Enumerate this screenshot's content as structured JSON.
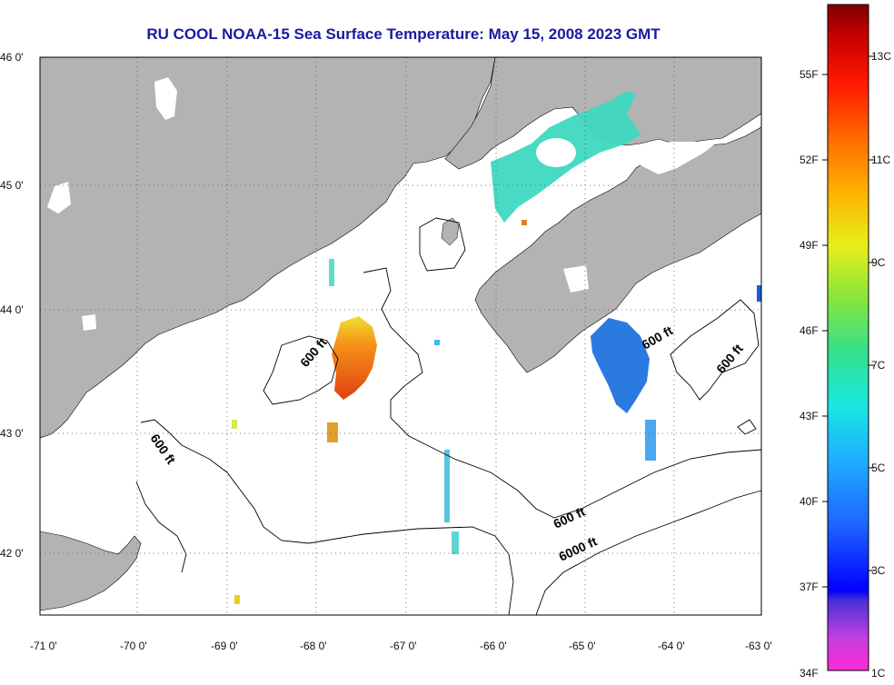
{
  "title": "RU COOL  NOAA-15  Sea Surface Temperature:  May 15, 2008 2023 GMT",
  "lat_ticks": [
    "46 0'",
    "45 0'",
    "44 0'",
    "43 0'",
    "42 0'"
  ],
  "lon_ticks": [
    "-71 0'",
    "-70 0'",
    "-69 0'",
    "-68 0'",
    "-67 0'",
    "-66 0'",
    "-65 0'",
    "-64 0'",
    "-63 0'"
  ],
  "contour_labels": [
    "600 ft",
    "600 ft",
    "600 ft",
    "600 ft",
    "6000 ft"
  ],
  "colorbar": {
    "f_labels": [
      "55F",
      "52F",
      "49F",
      "46F",
      "43F",
      "40F",
      "37F",
      "34F"
    ],
    "c_labels": [
      "13C",
      "11C",
      "9C",
      "7C",
      "5C",
      "3C",
      "1C"
    ]
  },
  "colors": {
    "land": "#b3b3b3",
    "title": "#1a1aa0",
    "warm": "#e8501a",
    "cool": "#2b7ae0",
    "shelf": "#3fd8c0"
  }
}
